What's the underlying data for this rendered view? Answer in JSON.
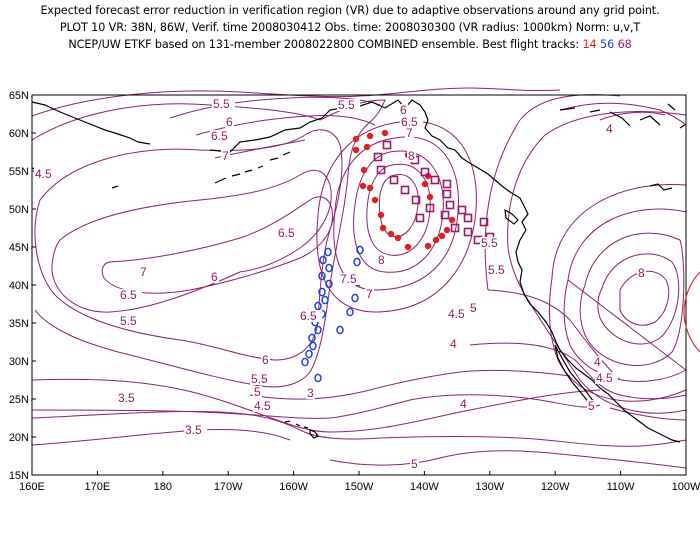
{
  "header": {
    "line1": "Expected forecast error reduction in verification region (VR) due to adaptive observations around any grid point.",
    "line2": "PLOT 10 VR: 38N, 86W, Verif. time 2008030412 Obs. time: 2008030300 (VR radius: 1000km) Norm: u,v,T",
    "line3_prefix": "NCEP/UW ETKF based on 131-member 2008022800 COMBINED ensemble.  Best flight tracks: ",
    "track_a": "14",
    "track_b": "56",
    "track_c": "68"
  },
  "map": {
    "lat_labels": [
      "65N",
      "60N",
      "55N",
      "50N",
      "45N",
      "40N",
      "35N",
      "30N",
      "25N",
      "20N",
      "15N"
    ],
    "lon_labels": [
      "160E",
      "170E",
      "180",
      "170W",
      "160W",
      "150W",
      "140W",
      "130W",
      "120W",
      "110W",
      "100W"
    ],
    "contour_labels": [
      "5.5",
      "5.5",
      "6",
      "6",
      "6.5",
      "6.5",
      "7",
      "7",
      "4.5",
      "6.5",
      "7",
      "6.5",
      "5.5",
      "6",
      "7.5",
      "7",
      "8",
      "6.5",
      "8",
      "5.5",
      "5.5",
      "5",
      "6",
      "5.5",
      "5",
      "4.5",
      "3.5",
      "5",
      "4.5",
      "4",
      "4",
      "3",
      "3.5",
      "4",
      "8",
      "5",
      "4.5",
      "4"
    ],
    "colors": {
      "contour": "#8e1f73",
      "track_14": "#e02020",
      "track_56": "#2040e0",
      "track_68": "#9b1b6a",
      "coast": "#000000"
    }
  },
  "tracks": {
    "14": {
      "name": "14",
      "marker": "filled-dot",
      "count": 23
    },
    "56": {
      "name": "56",
      "marker": "open-circle",
      "count": 22
    },
    "68": {
      "name": "68",
      "marker": "open-square",
      "count": 22
    }
  }
}
